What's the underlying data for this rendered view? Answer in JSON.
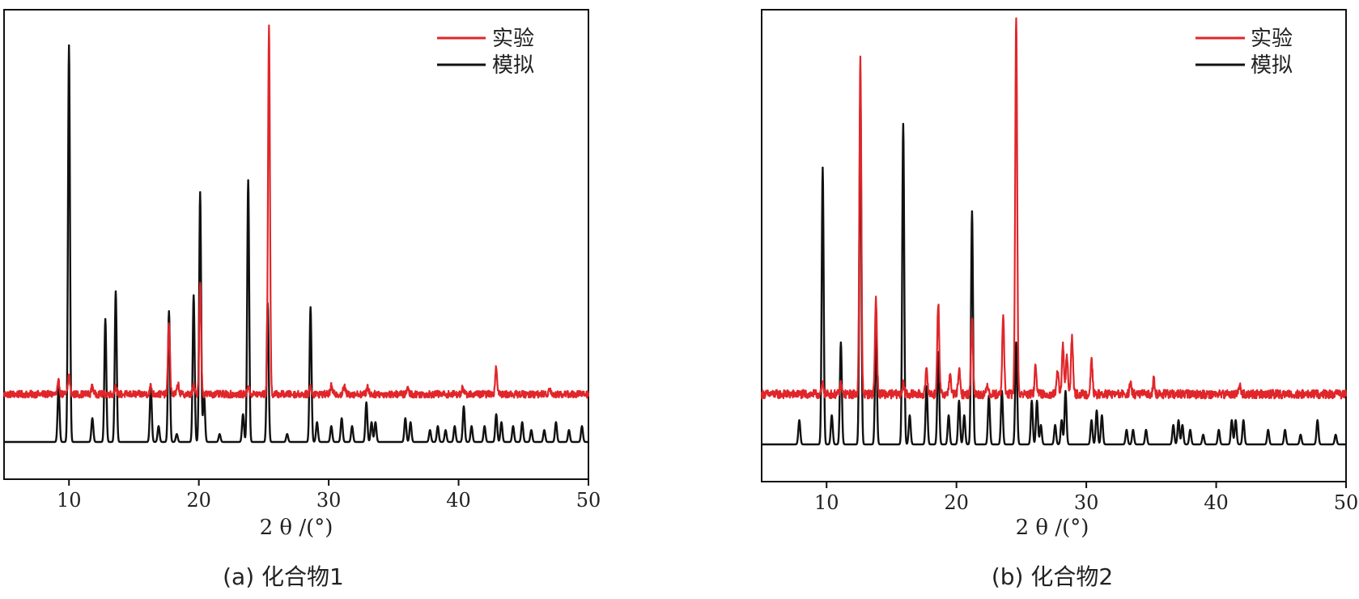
{
  "chart_data": [
    {
      "type": "line",
      "caption": "(a) 化合物1",
      "xlabel": "2 θ /(°)",
      "ylabel": "",
      "xlim": [
        5,
        50
      ],
      "xticks": [
        10,
        20,
        30,
        40,
        50
      ],
      "yaxis_ticks": "none",
      "legend_position": "top-right",
      "series": [
        {
          "name": "实验",
          "color": "#e0262a",
          "baseline": 0.16,
          "peaks": [
            [
              9.2,
              0.03
            ],
            [
              10.0,
              0.05
            ],
            [
              11.8,
              0.02
            ],
            [
              13.6,
              0.02
            ],
            [
              16.3,
              0.02
            ],
            [
              17.7,
              0.18
            ],
            [
              18.4,
              0.025
            ],
            [
              19.6,
              0.02
            ],
            [
              20.1,
              0.28
            ],
            [
              23.8,
              0.02
            ],
            [
              25.4,
              0.93
            ],
            [
              28.6,
              0.02
            ],
            [
              30.2,
              0.02
            ],
            [
              31.2,
              0.02
            ],
            [
              33.0,
              0.02
            ],
            [
              36.1,
              0.015
            ],
            [
              40.3,
              0.015
            ],
            [
              42.9,
              0.07
            ],
            [
              47.0,
              0.015
            ]
          ]
        },
        {
          "name": "模拟",
          "color": "#111111",
          "baseline": 0.0,
          "peaks": [
            [
              9.2,
              0.14
            ],
            [
              10.0,
              1.0
            ],
            [
              11.8,
              0.06
            ],
            [
              12.8,
              0.31
            ],
            [
              13.6,
              0.38
            ],
            [
              16.3,
              0.14
            ],
            [
              16.9,
              0.04
            ],
            [
              17.7,
              0.33
            ],
            [
              18.3,
              0.02
            ],
            [
              19.6,
              0.37
            ],
            [
              20.1,
              0.63
            ],
            [
              20.4,
              0.12
            ],
            [
              21.6,
              0.02
            ],
            [
              23.4,
              0.07
            ],
            [
              23.8,
              0.66
            ],
            [
              25.3,
              0.35
            ],
            [
              26.8,
              0.02
            ],
            [
              28.6,
              0.34
            ],
            [
              29.1,
              0.05
            ],
            [
              30.2,
              0.04
            ],
            [
              31.0,
              0.06
            ],
            [
              31.8,
              0.04
            ],
            [
              32.9,
              0.1
            ],
            [
              33.3,
              0.05
            ],
            [
              33.6,
              0.05
            ],
            [
              35.9,
              0.06
            ],
            [
              36.3,
              0.05
            ],
            [
              37.8,
              0.03
            ],
            [
              38.4,
              0.04
            ],
            [
              39.0,
              0.03
            ],
            [
              39.7,
              0.04
            ],
            [
              40.4,
              0.09
            ],
            [
              41.0,
              0.04
            ],
            [
              42.0,
              0.04
            ],
            [
              42.9,
              0.07
            ],
            [
              43.3,
              0.05
            ],
            [
              44.2,
              0.04
            ],
            [
              44.9,
              0.05
            ],
            [
              45.6,
              0.03
            ],
            [
              46.6,
              0.03
            ],
            [
              47.5,
              0.05
            ],
            [
              48.5,
              0.03
            ],
            [
              49.5,
              0.04
            ]
          ]
        }
      ]
    },
    {
      "type": "line",
      "caption": "(b) 化合物2",
      "xlabel": "2 θ /(°)",
      "ylabel": "",
      "xlim": [
        5,
        50
      ],
      "xticks": [
        10,
        20,
        30,
        40,
        50
      ],
      "yaxis_ticks": "none",
      "legend_position": "top-right",
      "series": [
        {
          "name": "实验",
          "color": "#e0262a",
          "baseline": 0.12,
          "peaks": [
            [
              9.7,
              0.02
            ],
            [
              11.1,
              0.02
            ],
            [
              12.6,
              0.69
            ],
            [
              13.8,
              0.2
            ],
            [
              15.9,
              0.02
            ],
            [
              17.7,
              0.05
            ],
            [
              18.6,
              0.19
            ],
            [
              19.5,
              0.04
            ],
            [
              20.2,
              0.05
            ],
            [
              21.2,
              0.16
            ],
            [
              22.4,
              0.02
            ],
            [
              23.6,
              0.16
            ],
            [
              24.6,
              0.78
            ],
            [
              26.1,
              0.06
            ],
            [
              27.8,
              0.05
            ],
            [
              28.2,
              0.1
            ],
            [
              28.5,
              0.08
            ],
            [
              28.9,
              0.12
            ],
            [
              30.4,
              0.07
            ],
            [
              33.4,
              0.02
            ],
            [
              35.2,
              0.03
            ],
            [
              41.8,
              0.02
            ]
          ]
        },
        {
          "name": "模拟",
          "color": "#111111",
          "baseline": 0.0,
          "peaks": [
            [
              7.9,
              0.05
            ],
            [
              9.7,
              0.57
            ],
            [
              10.4,
              0.06
            ],
            [
              11.1,
              0.21
            ],
            [
              12.6,
              0.73
            ],
            [
              13.8,
              0.23
            ],
            [
              15.9,
              0.66
            ],
            [
              16.4,
              0.06
            ],
            [
              17.7,
              0.12
            ],
            [
              18.6,
              0.19
            ],
            [
              19.4,
              0.06
            ],
            [
              20.2,
              0.09
            ],
            [
              20.6,
              0.06
            ],
            [
              21.2,
              0.48
            ],
            [
              22.5,
              0.1
            ],
            [
              23.5,
              0.11
            ],
            [
              24.6,
              0.21
            ],
            [
              25.8,
              0.09
            ],
            [
              26.2,
              0.09
            ],
            [
              26.5,
              0.04
            ],
            [
              27.6,
              0.04
            ],
            [
              28.1,
              0.05
            ],
            [
              28.4,
              0.11
            ],
            [
              30.4,
              0.05
            ],
            [
              30.8,
              0.07
            ],
            [
              31.2,
              0.06
            ],
            [
              33.1,
              0.03
            ],
            [
              33.6,
              0.03
            ],
            [
              34.6,
              0.03
            ],
            [
              36.7,
              0.04
            ],
            [
              37.1,
              0.05
            ],
            [
              37.4,
              0.04
            ],
            [
              38.0,
              0.03
            ],
            [
              39.0,
              0.02
            ],
            [
              40.2,
              0.03
            ],
            [
              41.2,
              0.05
            ],
            [
              41.5,
              0.05
            ],
            [
              42.1,
              0.05
            ],
            [
              44.0,
              0.03
            ],
            [
              45.3,
              0.03
            ],
            [
              46.5,
              0.02
            ],
            [
              47.8,
              0.05
            ],
            [
              49.2,
              0.02
            ]
          ]
        }
      ]
    }
  ]
}
